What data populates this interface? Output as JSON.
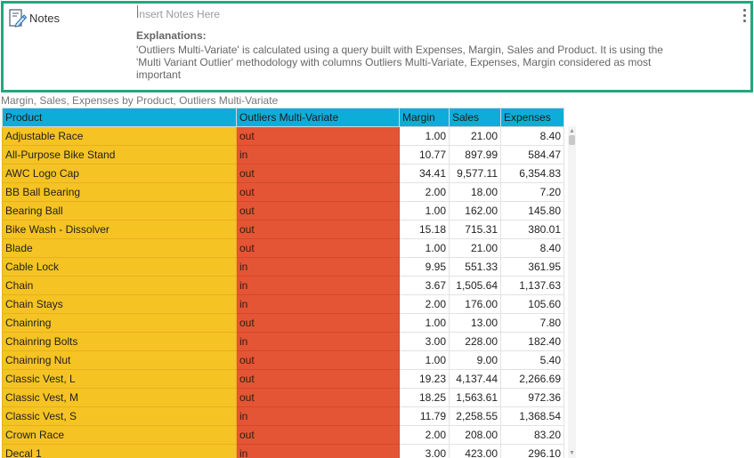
{
  "notes": {
    "title": "Notes",
    "icon": "edit-notes-icon",
    "placeholder": "Insert Notes Here",
    "explanations_heading": "Explanations:",
    "explanations_text": "'Outliers Multi-Variate' is calculated using a query built with Expenses, Margin, Sales and Product. It is using the 'Multi Variant Outlier' methodology with columns Outliers Multi-Variate, Expenses, Margin considered as most important",
    "border_color": "#22a77c"
  },
  "table": {
    "title": "Margin, Sales, Expenses by Product, Outliers Multi-Variate",
    "header_color": "#0eadd9",
    "product_color": "#f5c323",
    "outlier_color": "#e35535",
    "columns": [
      "Product",
      "Outliers Multi-Variate",
      "Margin",
      "Sales",
      "Expenses"
    ],
    "rows": [
      [
        "Adjustable Race",
        "out",
        "1.00",
        "21.00",
        "8.40"
      ],
      [
        "All-Purpose Bike Stand",
        "in",
        "10.77",
        "897.99",
        "584.47"
      ],
      [
        "AWC Logo Cap",
        "out",
        "34.41",
        "9,577.11",
        "6,354.83"
      ],
      [
        "BB Ball Bearing",
        "out",
        "2.00",
        "18.00",
        "7.20"
      ],
      [
        "Bearing Ball",
        "out",
        "1.00",
        "162.00",
        "145.80"
      ],
      [
        "Bike Wash - Dissolver",
        "out",
        "15.18",
        "715.31",
        "380.01"
      ],
      [
        "Blade",
        "out",
        "1.00",
        "21.00",
        "8.40"
      ],
      [
        "Cable Lock",
        "in",
        "9.95",
        "551.33",
        "361.95"
      ],
      [
        "Chain",
        "in",
        "3.67",
        "1,505.64",
        "1,137.63"
      ],
      [
        "Chain Stays",
        "in",
        "2.00",
        "176.00",
        "105.60"
      ],
      [
        "Chainring",
        "out",
        "1.00",
        "13.00",
        "7.80"
      ],
      [
        "Chainring Bolts",
        "in",
        "3.00",
        "228.00",
        "182.40"
      ],
      [
        "Chainring Nut",
        "out",
        "1.00",
        "9.00",
        "5.40"
      ],
      [
        "Classic Vest, L",
        "out",
        "19.23",
        "4,137.44",
        "2,266.69"
      ],
      [
        "Classic Vest, M",
        "out",
        "18.25",
        "1,563.61",
        "972.36"
      ],
      [
        "Classic Vest, S",
        "in",
        "11.79",
        "2,258.55",
        "1,368.54"
      ],
      [
        "Crown Race",
        "out",
        "2.00",
        "208.00",
        "83.20"
      ],
      [
        "Decal 1",
        "in",
        "3.00",
        "423.00",
        "296.10"
      ]
    ]
  }
}
